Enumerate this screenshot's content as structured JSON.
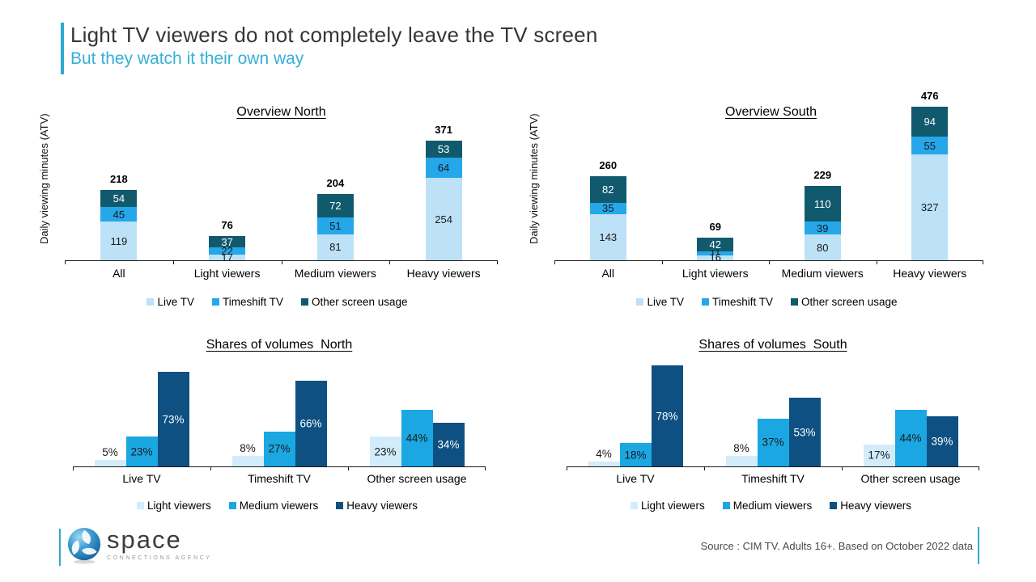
{
  "header": {
    "title": "Light TV viewers do not completely leave the TV screen",
    "subtitle": "But they watch it their own way"
  },
  "colors": {
    "live_tv": "#bde1f6",
    "timeshift_tv": "#25a7ea",
    "other_screen": "#115a6e",
    "light_viewers": "#d2ecfb",
    "medium_viewers": "#1ba7e2",
    "heavy_viewers": "#0e5081",
    "accent_cyan": "#2fa9d1",
    "dark_label": "#1a1a1a",
    "light_label": "#ffffff"
  },
  "chart_data": [
    {
      "type": "bar",
      "mode": "stacked",
      "title": "Overview North",
      "ylabel": "Daily viewing minutes (ATV)",
      "categories": [
        "All",
        "Light viewers",
        "Medium viewers",
        "Heavy viewers"
      ],
      "series": [
        {
          "name": "Live TV",
          "color_key": "live_tv",
          "label_color": "#1a1a1a",
          "values": [
            119,
            17,
            81,
            254
          ]
        },
        {
          "name": "Timeshift TV",
          "color_key": "timeshift_tv",
          "label_color": "#1a1a1a",
          "values": [
            45,
            22,
            51,
            64
          ]
        },
        {
          "name": "Other screen usage",
          "color_key": "other_screen",
          "label_color": "#ffffff",
          "values": [
            54,
            37,
            72,
            53
          ]
        }
      ],
      "totals": [
        218,
        76,
        204,
        371
      ],
      "legend_position": "bottom",
      "grid": false
    },
    {
      "type": "bar",
      "mode": "stacked",
      "title": "Overview South",
      "ylabel": "Daily viewing minutes (ATV)",
      "categories": [
        "All",
        "Light viewers",
        "Medium viewers",
        "Heavy viewers"
      ],
      "series": [
        {
          "name": "Live TV",
          "color_key": "live_tv",
          "label_color": "#1a1a1a",
          "values": [
            143,
            16,
            80,
            327
          ]
        },
        {
          "name": "Timeshift TV",
          "color_key": "timeshift_tv",
          "label_color": "#1a1a1a",
          "values": [
            35,
            11,
            39,
            55
          ]
        },
        {
          "name": "Other screen usage",
          "color_key": "other_screen",
          "label_color": "#ffffff",
          "values": [
            82,
            42,
            110,
            94
          ]
        }
      ],
      "totals": [
        260,
        69,
        229,
        476
      ],
      "legend_position": "bottom",
      "grid": false
    },
    {
      "type": "bar",
      "mode": "grouped",
      "title": "Shares of volumes  North",
      "unit": "%",
      "categories": [
        "Live TV",
        "Timeshift TV",
        "Other screen usage"
      ],
      "series": [
        {
          "name": "Light viewers",
          "color_key": "light_viewers",
          "label_color": "#1a1a1a",
          "values": [
            5,
            8,
            23
          ]
        },
        {
          "name": "Medium viewers",
          "color_key": "medium_viewers",
          "label_color": "#1a1a1a",
          "values": [
            23,
            27,
            44
          ]
        },
        {
          "name": "Heavy viewers",
          "color_key": "heavy_viewers",
          "label_color": "#ffffff",
          "values": [
            73,
            66,
            34
          ]
        }
      ],
      "legend_position": "bottom",
      "grid": false
    },
    {
      "type": "bar",
      "mode": "grouped",
      "title": "Shares of volumes  South",
      "unit": "%",
      "categories": [
        "Live TV",
        "Timeshift TV",
        "Other screen usage"
      ],
      "series": [
        {
          "name": "Light viewers",
          "color_key": "light_viewers",
          "label_color": "#1a1a1a",
          "values": [
            4,
            8,
            17
          ]
        },
        {
          "name": "Medium viewers",
          "color_key": "medium_viewers",
          "label_color": "#1a1a1a",
          "values": [
            18,
            37,
            44
          ]
        },
        {
          "name": "Heavy viewers",
          "color_key": "heavy_viewers",
          "label_color": "#ffffff",
          "values": [
            78,
            53,
            39
          ]
        }
      ],
      "legend_position": "bottom",
      "grid": false
    }
  ],
  "footer": {
    "logo_word": "space",
    "logo_tagline": "CONNECTIONS AGENCY",
    "source": "Source : CIM TV. Adults 16+. Based on October 2022 data"
  }
}
